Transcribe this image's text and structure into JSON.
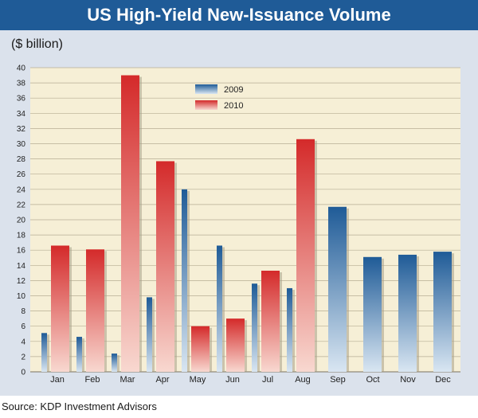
{
  "title": "US High-Yield New-Issuance Volume",
  "unit_label": "($ billion)",
  "source": "Source: KDP Investment Advisors",
  "colors": {
    "bar_2009_top": "#1f5b97",
    "bar_2009_bottom": "#d9e6f2",
    "bar_2010_top": "#d42a2a",
    "bar_2010_bottom": "#f8d8d0",
    "plot_bg": "#f6efd6",
    "frame_bg": "#dbe2ec",
    "title_bg": "#1f5b97"
  },
  "chart_data": {
    "type": "bar",
    "title": "US High-Yield New-Issuance Volume",
    "ylabel": "($ billion)",
    "xlabel": "",
    "ylim": [
      0,
      40
    ],
    "yticks": [
      0,
      2,
      4,
      6,
      8,
      10,
      12,
      14,
      16,
      18,
      20,
      22,
      24,
      26,
      28,
      30,
      32,
      34,
      36,
      38,
      40
    ],
    "grid": "horizontal",
    "legend_position": "top-center",
    "categories": [
      "Jan",
      "Feb",
      "Mar",
      "Apr",
      "May",
      "Jun",
      "Jul",
      "Aug",
      "Sep",
      "Oct",
      "Nov",
      "Dec"
    ],
    "series": [
      {
        "name": "2009",
        "values": [
          5.1,
          4.6,
          2.4,
          9.8,
          24.0,
          16.6,
          11.6,
          11.0,
          21.7,
          15.1,
          15.4,
          15.8
        ]
      },
      {
        "name": "2010",
        "values": [
          16.6,
          16.1,
          39.0,
          27.7,
          6.0,
          7.0,
          13.3,
          30.6,
          null,
          null,
          null,
          null
        ]
      }
    ]
  }
}
